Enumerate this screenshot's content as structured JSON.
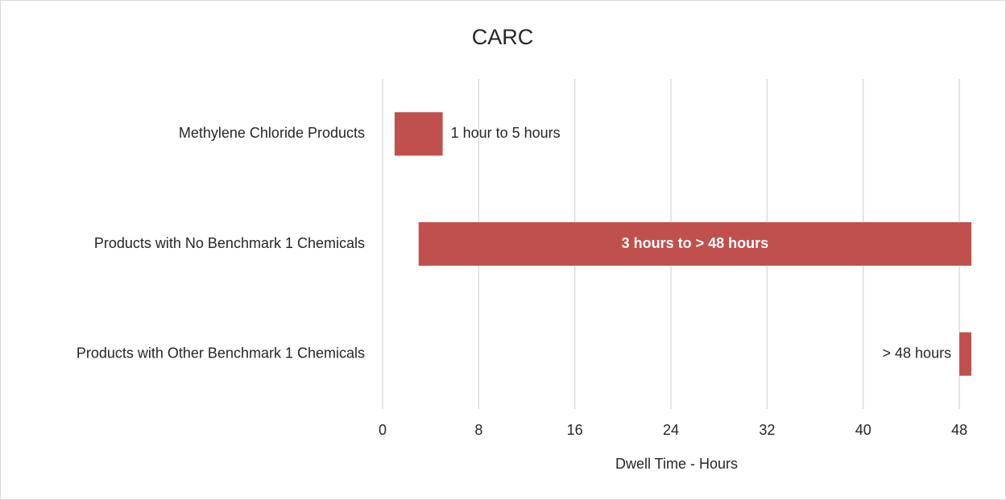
{
  "chart_data": {
    "type": "floating-bar",
    "title": "CARC",
    "categories": [
      "Methylene Chloride Products",
      "Products with No Benchmark 1 Chemicals",
      "Products with Other Benchmark 1 Chemicals"
    ],
    "start": [
      1,
      3,
      48
    ],
    "end": [
      5,
      49,
      49
    ],
    "value_labels": [
      "1 hour to 5 hours",
      "3 hours to > 48 hours",
      "> 48 hours"
    ],
    "color": "#c0504d",
    "x_label": "Dwell Time - Hours",
    "xlim": [
      0,
      49
    ],
    "xticks": [
      0,
      8,
      16,
      24,
      32,
      40,
      48
    ],
    "grid": true
  }
}
